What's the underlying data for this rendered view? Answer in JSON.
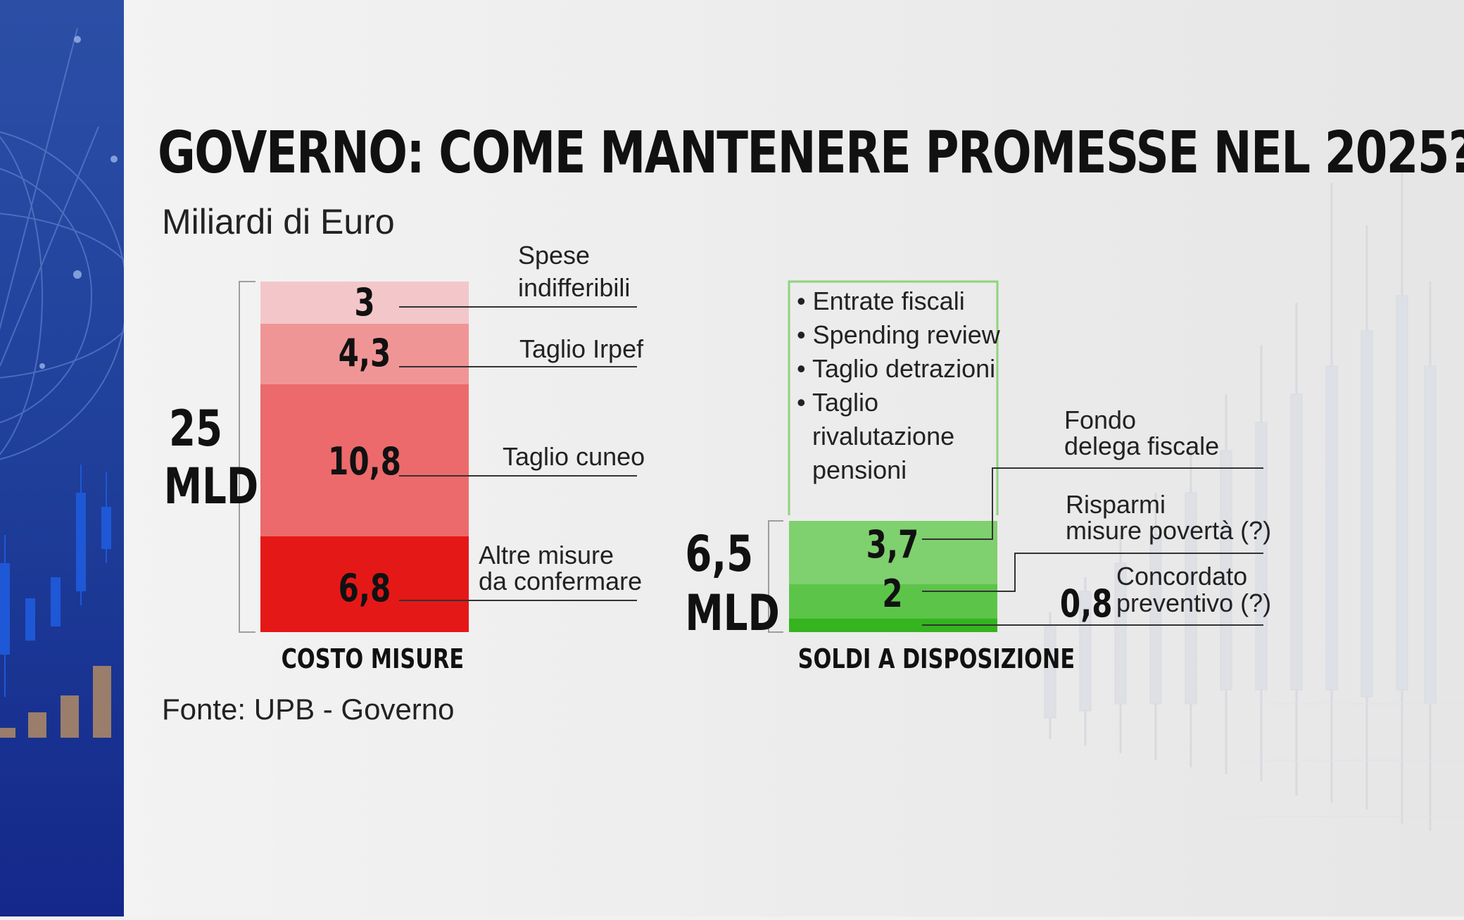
{
  "title": "GOVERNO: COME MANTENERE PROMESSE NEL 2025?",
  "subtitle": "Miliardi di Euro",
  "source": "Fonte: UPB - Governo",
  "colors": {
    "costo": [
      "#f3c7c9",
      "#f09596",
      "#ec6a6b",
      "#e51818"
    ],
    "soldi": [
      "#7fd06e",
      "#5cc549",
      "#35b41f"
    ],
    "box_border": "#8ed47c"
  },
  "chart_data": [
    {
      "type": "bar",
      "stacked": true,
      "category": "COSTO MISURE",
      "total_label_number": "25",
      "total_label_unit": "MLD",
      "segments": [
        {
          "label": "Spese indifferibili",
          "value": 3,
          "value_label": "3"
        },
        {
          "label": "Taglio Irpef",
          "value": 4.3,
          "value_label": "4,3"
        },
        {
          "label": "Taglio cuneo",
          "value": 10.8,
          "value_label": "10,8"
        },
        {
          "label": "Altre misure da confermare",
          "value": 6.8,
          "value_label": "6,8"
        }
      ]
    },
    {
      "type": "bar",
      "stacked": true,
      "category": "SOLDI A DISPOSIZIONE",
      "total_label_number": "6,5",
      "total_label_unit": "MLD",
      "segments": [
        {
          "label": "Fondo delega fiscale",
          "value": 3.7,
          "value_label": "3,7"
        },
        {
          "label": "Risparmi misure povertà (?)",
          "value": 2,
          "value_label": "2"
        },
        {
          "label": "Concordato preventivo (?)",
          "value": 0.8,
          "value_label": "0,8"
        }
      ],
      "pending_sources": [
        "Entrate fiscali",
        "Spending review",
        "Taglio detrazioni",
        "Taglio rivalutazione pensioni"
      ]
    }
  ],
  "labels": {
    "spese_1": "Spese",
    "spese_2": "indifferibili",
    "irpef": "Taglio Irpef",
    "cuneo": "Taglio cuneo",
    "altre_1": "Altre misure",
    "altre_2": "da confermare",
    "fondo_1": "Fondo",
    "fondo_2": "delega fiscale",
    "risparmi_1": "Risparmi",
    "risparmi_2": "misure povertà (?)",
    "concordato_1": "Concordato",
    "concordato_2": "preventivo (?)"
  },
  "bullets": [
    "• Entrate fiscali",
    "• Spending review",
    "• Taglio detrazioni",
    "• Taglio",
    "rivalutazione",
    "pensioni"
  ]
}
